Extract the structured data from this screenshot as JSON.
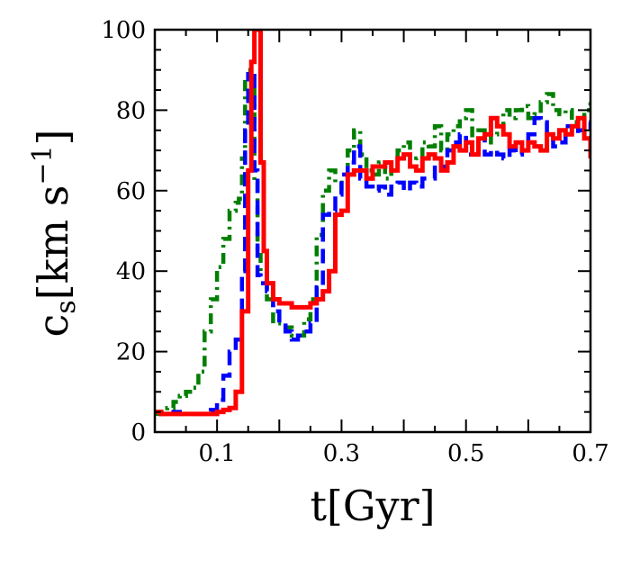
{
  "chart_data": {
    "type": "line",
    "title": "",
    "xlabel": "t[Gyr]",
    "ylabel": "c_s[km s^-1]",
    "xlim": [
      0,
      0.7
    ],
    "ylim": [
      0,
      100
    ],
    "x_ticks": [
      0.1,
      0.3,
      0.5,
      0.7
    ],
    "x_tick_labels": [
      "0.1",
      "0.3",
      "0.5",
      "0.7"
    ],
    "y_ticks": [
      0,
      20,
      40,
      60,
      80,
      100
    ],
    "y_tick_labels": [
      "0",
      "20",
      "40",
      "60",
      "80",
      "100"
    ],
    "grid": false,
    "legend": "none",
    "series": [
      {
        "name": "green-dashdot",
        "color": "#007f00",
        "style": "dashdot",
        "points": [
          [
            0.0,
            4.5
          ],
          [
            0.01,
            5
          ],
          [
            0.02,
            6
          ],
          [
            0.03,
            7.5
          ],
          [
            0.04,
            9
          ],
          [
            0.05,
            10
          ],
          [
            0.06,
            11
          ],
          [
            0.07,
            15
          ],
          [
            0.08,
            25
          ],
          [
            0.09,
            33
          ],
          [
            0.1,
            41
          ],
          [
            0.11,
            48
          ],
          [
            0.12,
            55
          ],
          [
            0.13,
            57
          ],
          [
            0.135,
            58
          ],
          [
            0.14,
            68
          ],
          [
            0.145,
            87
          ],
          [
            0.15,
            90
          ],
          [
            0.155,
            86
          ],
          [
            0.16,
            62
          ],
          [
            0.165,
            44
          ],
          [
            0.17,
            40
          ],
          [
            0.18,
            33
          ],
          [
            0.19,
            27
          ],
          [
            0.2,
            27
          ],
          [
            0.21,
            26
          ],
          [
            0.22,
            24
          ],
          [
            0.23,
            24
          ],
          [
            0.24,
            28
          ],
          [
            0.25,
            33
          ],
          [
            0.26,
            49
          ],
          [
            0.27,
            60
          ],
          [
            0.28,
            65
          ],
          [
            0.29,
            62
          ],
          [
            0.3,
            60
          ],
          [
            0.31,
            70
          ],
          [
            0.32,
            75
          ],
          [
            0.33,
            69
          ],
          [
            0.34,
            65
          ],
          [
            0.35,
            64
          ],
          [
            0.36,
            67
          ],
          [
            0.37,
            63
          ],
          [
            0.38,
            65
          ],
          [
            0.39,
            70
          ],
          [
            0.4,
            72
          ],
          [
            0.41,
            66
          ],
          [
            0.42,
            68
          ],
          [
            0.43,
            72
          ],
          [
            0.44,
            71
          ],
          [
            0.45,
            76
          ],
          [
            0.46,
            70
          ],
          [
            0.47,
            74
          ],
          [
            0.48,
            76
          ],
          [
            0.49,
            78
          ],
          [
            0.5,
            80
          ],
          [
            0.51,
            73
          ],
          [
            0.52,
            75
          ],
          [
            0.53,
            72
          ],
          [
            0.54,
            74
          ],
          [
            0.55,
            76
          ],
          [
            0.56,
            80
          ],
          [
            0.57,
            78
          ],
          [
            0.58,
            80
          ],
          [
            0.59,
            81
          ],
          [
            0.6,
            78
          ],
          [
            0.61,
            79
          ],
          [
            0.62,
            82
          ],
          [
            0.63,
            84
          ],
          [
            0.64,
            80
          ],
          [
            0.65,
            79
          ],
          [
            0.66,
            80
          ],
          [
            0.67,
            77
          ],
          [
            0.68,
            77
          ],
          [
            0.69,
            80
          ],
          [
            0.7,
            82
          ]
        ]
      },
      {
        "name": "blue-dashed",
        "color": "#0000ff",
        "style": "dashed",
        "points": [
          [
            0.0,
            5
          ],
          [
            0.01,
            4.5
          ],
          [
            0.02,
            4.5
          ],
          [
            0.03,
            5
          ],
          [
            0.04,
            4.5
          ],
          [
            0.05,
            4.5
          ],
          [
            0.06,
            4.5
          ],
          [
            0.07,
            4.5
          ],
          [
            0.08,
            5
          ],
          [
            0.09,
            5.5
          ],
          [
            0.1,
            8
          ],
          [
            0.11,
            14
          ],
          [
            0.12,
            20
          ],
          [
            0.13,
            23
          ],
          [
            0.14,
            40
          ],
          [
            0.145,
            75
          ],
          [
            0.15,
            89
          ],
          [
            0.155,
            90
          ],
          [
            0.16,
            65
          ],
          [
            0.165,
            39
          ],
          [
            0.17,
            37
          ],
          [
            0.18,
            35
          ],
          [
            0.19,
            30
          ],
          [
            0.2,
            27
          ],
          [
            0.21,
            25
          ],
          [
            0.22,
            23
          ],
          [
            0.23,
            24
          ],
          [
            0.24,
            25
          ],
          [
            0.25,
            27
          ],
          [
            0.26,
            36
          ],
          [
            0.27,
            54
          ],
          [
            0.28,
            55
          ],
          [
            0.29,
            59
          ],
          [
            0.3,
            64
          ],
          [
            0.31,
            67
          ],
          [
            0.32,
            71
          ],
          [
            0.33,
            63
          ],
          [
            0.34,
            61
          ],
          [
            0.35,
            60
          ],
          [
            0.36,
            61
          ],
          [
            0.37,
            59
          ],
          [
            0.38,
            61
          ],
          [
            0.39,
            62
          ],
          [
            0.4,
            60
          ],
          [
            0.41,
            62
          ],
          [
            0.42,
            61
          ],
          [
            0.43,
            63
          ],
          [
            0.44,
            63
          ],
          [
            0.45,
            67
          ],
          [
            0.46,
            66
          ],
          [
            0.47,
            70
          ],
          [
            0.48,
            72
          ],
          [
            0.49,
            74
          ],
          [
            0.5,
            69
          ],
          [
            0.51,
            72
          ],
          [
            0.52,
            73
          ],
          [
            0.53,
            69
          ],
          [
            0.54,
            70
          ],
          [
            0.55,
            69
          ],
          [
            0.56,
            68
          ],
          [
            0.57,
            70
          ],
          [
            0.58,
            69
          ],
          [
            0.59,
            72
          ],
          [
            0.6,
            74
          ],
          [
            0.61,
            78
          ],
          [
            0.62,
            77
          ],
          [
            0.63,
            74
          ],
          [
            0.64,
            71
          ],
          [
            0.65,
            72
          ],
          [
            0.66,
            76
          ],
          [
            0.67,
            74
          ],
          [
            0.68,
            75
          ],
          [
            0.69,
            77
          ],
          [
            0.7,
            75
          ]
        ]
      },
      {
        "name": "red-solid",
        "color": "#ff0000",
        "style": "solid",
        "points": [
          [
            0.0,
            5
          ],
          [
            0.01,
            4.5
          ],
          [
            0.02,
            4.5
          ],
          [
            0.03,
            4.5
          ],
          [
            0.04,
            4.5
          ],
          [
            0.05,
            4.5
          ],
          [
            0.06,
            4.5
          ],
          [
            0.07,
            4.5
          ],
          [
            0.08,
            4.5
          ],
          [
            0.09,
            4.5
          ],
          [
            0.1,
            5
          ],
          [
            0.11,
            5.5
          ],
          [
            0.12,
            6
          ],
          [
            0.13,
            10
          ],
          [
            0.14,
            30
          ],
          [
            0.15,
            65
          ],
          [
            0.155,
            92
          ],
          [
            0.16,
            100
          ],
          [
            0.165,
            100
          ],
          [
            0.17,
            67
          ],
          [
            0.175,
            45
          ],
          [
            0.18,
            37
          ],
          [
            0.19,
            33
          ],
          [
            0.2,
            32
          ],
          [
            0.21,
            32
          ],
          [
            0.22,
            31
          ],
          [
            0.23,
            31
          ],
          [
            0.24,
            31
          ],
          [
            0.25,
            32
          ],
          [
            0.26,
            33
          ],
          [
            0.27,
            35
          ],
          [
            0.28,
            40
          ],
          [
            0.29,
            54
          ],
          [
            0.3,
            55
          ],
          [
            0.31,
            64
          ],
          [
            0.32,
            65
          ],
          [
            0.33,
            65
          ],
          [
            0.34,
            63
          ],
          [
            0.35,
            66
          ],
          [
            0.36,
            66
          ],
          [
            0.37,
            67
          ],
          [
            0.38,
            65
          ],
          [
            0.39,
            68
          ],
          [
            0.4,
            69
          ],
          [
            0.41,
            66
          ],
          [
            0.42,
            65
          ],
          [
            0.43,
            68
          ],
          [
            0.44,
            69
          ],
          [
            0.45,
            68
          ],
          [
            0.46,
            65
          ],
          [
            0.47,
            67
          ],
          [
            0.48,
            71
          ],
          [
            0.49,
            70
          ],
          [
            0.5,
            72
          ],
          [
            0.51,
            69
          ],
          [
            0.52,
            73
          ],
          [
            0.53,
            74
          ],
          [
            0.54,
            78
          ],
          [
            0.55,
            76
          ],
          [
            0.56,
            74
          ],
          [
            0.57,
            71
          ],
          [
            0.58,
            72
          ],
          [
            0.59,
            70
          ],
          [
            0.6,
            72
          ],
          [
            0.61,
            71
          ],
          [
            0.62,
            70
          ],
          [
            0.63,
            74
          ],
          [
            0.64,
            73
          ],
          [
            0.65,
            75
          ],
          [
            0.66,
            74
          ],
          [
            0.67,
            76
          ],
          [
            0.68,
            78
          ],
          [
            0.69,
            73
          ],
          [
            0.7,
            68
          ]
        ]
      }
    ]
  }
}
